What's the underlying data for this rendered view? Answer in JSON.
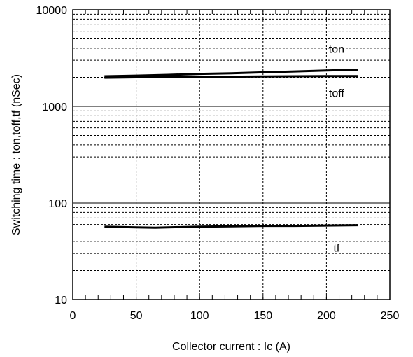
{
  "chart_data": {
    "type": "line",
    "xlabel": "Collector current : Ic (A)",
    "ylabel": "Switching time : ton,toff,tf (nSec)",
    "xlim": [
      0,
      250
    ],
    "ylim": [
      10,
      10000
    ],
    "yscale": "log",
    "grid": true,
    "x_ticks": [
      0,
      50,
      100,
      150,
      200,
      250
    ],
    "x_tick_labels": [
      "0",
      "50",
      "100",
      "150",
      "200",
      "250"
    ],
    "y_ticks": [
      10,
      100,
      1000,
      10000
    ],
    "y_tick_labels": [
      "10",
      "100",
      "1000",
      "10000"
    ],
    "series": [
      {
        "name": "ton",
        "x": [
          25,
          50,
          75,
          100,
          125,
          150,
          175,
          200,
          225
        ],
        "y": [
          2050,
          2080,
          2120,
          2170,
          2200,
          2250,
          2300,
          2350,
          2400
        ]
      },
      {
        "name": "toff",
        "x": [
          25,
          50,
          75,
          100,
          125,
          150,
          175,
          200,
          225
        ],
        "y": [
          1980,
          2000,
          2010,
          2020,
          2030,
          2040,
          2050,
          2055,
          2060
        ]
      },
      {
        "name": "tf",
        "x": [
          25,
          50,
          65,
          75,
          100,
          125,
          150,
          175,
          200,
          225
        ],
        "y": [
          57,
          56,
          55.5,
          56,
          57,
          57.5,
          58,
          58,
          58.5,
          59
        ]
      }
    ],
    "colors": {
      "line": "#000000",
      "grid": "#000000",
      "background": "#ffffff"
    }
  }
}
